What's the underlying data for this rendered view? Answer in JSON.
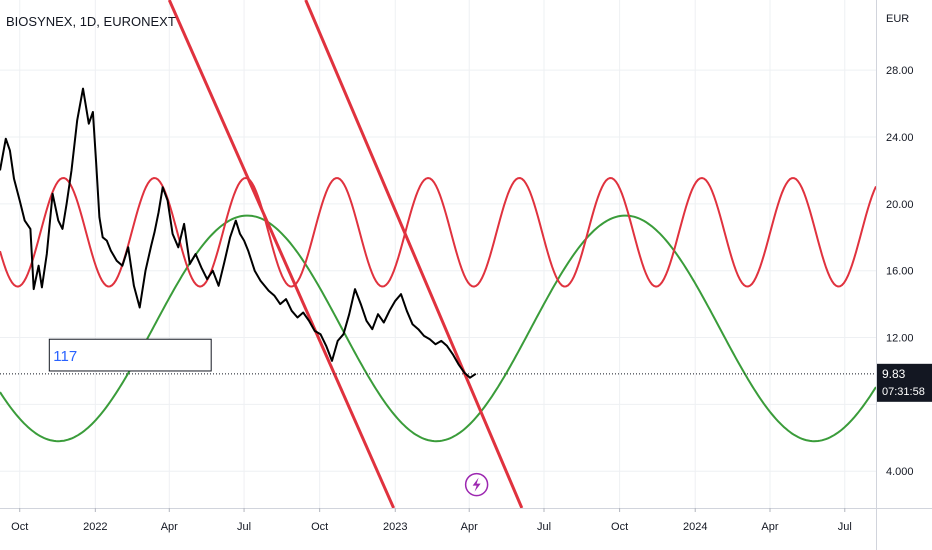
{
  "header": {
    "symbol_line": "BIOSYNEX, 1D, EURONEXT"
  },
  "price_axis": {
    "currency": "EUR",
    "last_price": "9.83",
    "countdown": "07:31:58"
  },
  "annotation": {
    "box_label": "117"
  },
  "colors": {
    "price": "#000000",
    "red_wave": "#e0323e",
    "green_wave": "#3a9c3a",
    "channel": "#e0323e",
    "grid": "#eef0f3",
    "axis_text": "#131722",
    "event_icon": "#9c27b0"
  },
  "chart_data": {
    "type": "line",
    "title": "BIOSYNEX, 1D, EURONEXT",
    "xlabel": "",
    "ylabel": "EUR",
    "ylim": [
      1.8,
      32.2
    ],
    "xlim": [
      "2021-09-07",
      "2024-08-08"
    ],
    "grid": true,
    "x_ticks": [
      {
        "date": "2021-10-01",
        "label": "Oct"
      },
      {
        "date": "2022-01-01",
        "label": "2022"
      },
      {
        "date": "2022-04-01",
        "label": "Apr"
      },
      {
        "date": "2022-07-01",
        "label": "Jul"
      },
      {
        "date": "2022-10-01",
        "label": "Oct"
      },
      {
        "date": "2023-01-01",
        "label": "2023"
      },
      {
        "date": "2023-04-01",
        "label": "Apr"
      },
      {
        "date": "2023-07-01",
        "label": "Jul"
      },
      {
        "date": "2023-10-01",
        "label": "Oct"
      },
      {
        "date": "2024-01-01",
        "label": "2024"
      },
      {
        "date": "2024-04-01",
        "label": "Apr"
      },
      {
        "date": "2024-07-01",
        "label": "Jul"
      }
    ],
    "y_ticks": [
      {
        "value": 4,
        "label": "4.000"
      },
      {
        "value": 8,
        "label": ""
      },
      {
        "value": 12,
        "label": "12.00"
      },
      {
        "value": 16,
        "label": "16.00"
      },
      {
        "value": 20,
        "label": "20.00"
      },
      {
        "value": 24,
        "label": "24.00"
      },
      {
        "value": 28,
        "label": "28.00"
      }
    ],
    "series": [
      {
        "type": "line",
        "x": [
          "2021-09-07",
          "2021-09-14",
          "2021-09-19",
          "2021-09-24",
          "2021-10-01",
          "2021-10-07",
          "2021-10-14",
          "2021-10-18",
          "2021-10-24",
          "2021-10-28",
          "2021-11-03",
          "2021-11-10",
          "2021-11-17",
          "2021-11-22",
          "2021-11-27",
          "2021-12-03",
          "2021-12-10",
          "2021-12-17",
          "2021-12-24",
          "2021-12-29",
          "2022-01-02",
          "2022-01-06",
          "2022-01-10",
          "2022-01-15",
          "2022-01-20",
          "2022-01-27",
          "2022-02-03",
          "2022-02-10",
          "2022-02-17",
          "2022-02-24",
          "2022-03-03",
          "2022-03-10",
          "2022-03-14",
          "2022-03-19",
          "2022-03-24",
          "2022-03-30",
          "2022-04-05",
          "2022-04-12",
          "2022-04-19",
          "2022-04-26",
          "2022-05-03",
          "2022-05-10",
          "2022-05-17",
          "2022-05-24",
          "2022-05-31",
          "2022-06-07",
          "2022-06-14",
          "2022-06-21",
          "2022-06-26",
          "2022-07-01",
          "2022-07-06",
          "2022-07-14",
          "2022-07-21",
          "2022-07-31",
          "2022-08-07",
          "2022-08-14",
          "2022-08-21",
          "2022-08-28",
          "2022-09-04",
          "2022-09-11",
          "2022-09-18",
          "2022-09-25",
          "2022-10-02",
          "2022-10-09",
          "2022-10-16",
          "2022-10-23",
          "2022-10-30",
          "2022-11-06",
          "2022-11-13",
          "2022-11-20",
          "2022-11-27",
          "2022-12-04",
          "2022-12-11",
          "2022-12-18",
          "2022-12-25",
          "2023-01-01",
          "2023-01-08",
          "2023-01-15",
          "2023-01-22",
          "2023-01-29",
          "2023-02-05",
          "2023-02-12",
          "2023-02-19",
          "2023-02-26",
          "2023-03-05",
          "2023-03-12",
          "2023-03-19",
          "2023-03-26",
          "2023-04-02",
          "2023-04-09"
        ],
        "values": [
          22.0,
          23.9,
          23.2,
          21.5,
          20.2,
          19.0,
          18.5,
          14.9,
          16.3,
          15.0,
          17.0,
          20.6,
          19.0,
          18.5,
          20.0,
          22.0,
          25.0,
          26.9,
          24.8,
          25.5,
          22.5,
          19.2,
          18.0,
          17.8,
          17.2,
          16.6,
          16.3,
          17.4,
          15.1,
          13.8,
          16.0,
          17.5,
          18.3,
          19.5,
          21.0,
          20.2,
          18.2,
          17.4,
          18.8,
          16.4,
          17.0,
          16.2,
          15.5,
          16.0,
          15.1,
          16.5,
          18.0,
          19.0,
          18.2,
          17.8,
          17.2,
          16.0,
          15.4,
          14.8,
          14.5,
          14.0,
          14.3,
          13.6,
          13.2,
          13.5,
          13.0,
          12.4,
          12.2,
          11.5,
          10.6,
          11.8,
          12.2,
          13.4,
          14.9,
          14.0,
          13.0,
          12.5,
          13.4,
          12.9,
          13.6,
          14.2,
          14.6,
          13.6,
          12.8,
          12.5,
          12.1,
          11.9,
          11.6,
          11.8,
          11.5,
          11.0,
          10.4,
          9.9,
          9.6,
          9.83
        ]
      }
    ],
    "overlays": {
      "red_sine": {
        "center": 18.3,
        "amplitude": 3.25,
        "period_days": 111,
        "peak_date": "2021-11-23"
      },
      "green_sine": {
        "center": 12.55,
        "amplitude": 6.75,
        "period_days": 460,
        "peak_date": "2022-07-05"
      },
      "channel_lines": [
        {
          "from": {
            "date": "2022-04-01",
            "price": 32.2
          },
          "to": {
            "date": "2022-12-30",
            "price": 1.8
          }
        },
        {
          "from": {
            "date": "2022-09-14",
            "price": 32.2
          },
          "to": {
            "date": "2023-06-04",
            "price": 1.8
          }
        }
      ],
      "price_line": 9.83,
      "label_box": {
        "from": {
          "date": "2021-11-06",
          "price": 10.0
        },
        "to": {
          "date": "2022-05-22",
          "price": 11.9
        }
      },
      "event_marker": {
        "date": "2023-04-10",
        "price": 3.2
      }
    }
  }
}
